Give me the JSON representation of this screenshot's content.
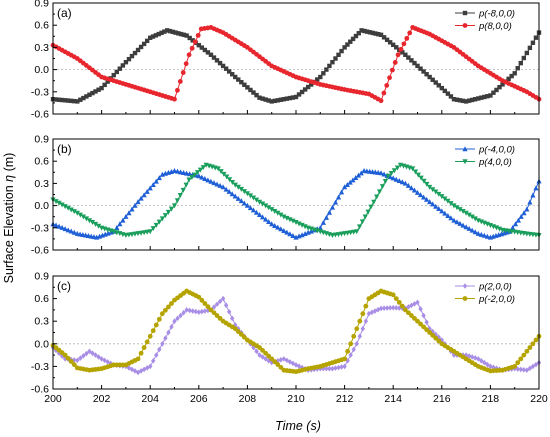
{
  "figure": {
    "ylabel_prefix": "Surface Elevation ",
    "ylabel_symbol": "η",
    "ylabel_unit": " (m)",
    "xlabel": "Time (s)"
  },
  "chart_data": [
    {
      "type": "line",
      "panel_label": "(a)",
      "xlim": [
        200,
        220
      ],
      "ylim": [
        -0.6,
        0.9
      ],
      "x_ticks": [
        200,
        202,
        204,
        206,
        208,
        210,
        212,
        214,
        216,
        218,
        220
      ],
      "y_ticks": [
        -0.6,
        -0.3,
        0.0,
        0.3,
        0.6,
        0.9
      ],
      "y_tick_labels": [
        "-0.6",
        "-0.3",
        "0.0",
        "0.3",
        "0.6",
        "0.9"
      ],
      "zero_line": true,
      "legend_position": "top-right",
      "series": [
        {
          "name": "p(-8,0,0)",
          "color": "#3d3d3d",
          "marker": "square",
          "points": [
            [
              200,
              -0.4
            ],
            [
              201,
              -0.43
            ],
            [
              202,
              -0.25
            ],
            [
              203,
              0.1
            ],
            [
              204,
              0.43
            ],
            [
              204.7,
              0.53
            ],
            [
              205.5,
              0.46
            ],
            [
              206.5,
              0.2
            ],
            [
              207.5,
              -0.1
            ],
            [
              208.5,
              -0.38
            ],
            [
              209,
              -0.43
            ],
            [
              210,
              -0.37
            ],
            [
              211,
              -0.1
            ],
            [
              212,
              0.3
            ],
            [
              212.7,
              0.53
            ],
            [
              213.5,
              0.47
            ],
            [
              214.5,
              0.2
            ],
            [
              215.5,
              -0.1
            ],
            [
              216.5,
              -0.4
            ],
            [
              217,
              -0.43
            ],
            [
              218,
              -0.35
            ],
            [
              219,
              -0.05
            ],
            [
              220,
              0.5
            ]
          ]
        },
        {
          "name": "p(8,0,0)",
          "color": "#e8262e",
          "marker": "circle",
          "points": [
            [
              200,
              0.33
            ],
            [
              201,
              0.15
            ],
            [
              202,
              -0.1
            ],
            [
              203,
              -0.2
            ],
            [
              204,
              -0.3
            ],
            [
              205,
              -0.4
            ],
            [
              205.6,
              0.2
            ],
            [
              206.1,
              0.55
            ],
            [
              206.5,
              0.57
            ],
            [
              207,
              0.5
            ],
            [
              208,
              0.3
            ],
            [
              209,
              0.05
            ],
            [
              210,
              -0.1
            ],
            [
              211,
              -0.2
            ],
            [
              212,
              -0.27
            ],
            [
              213,
              -0.33
            ],
            [
              213.5,
              -0.42
            ],
            [
              214.2,
              0.2
            ],
            [
              214.8,
              0.57
            ],
            [
              215.5,
              0.48
            ],
            [
              216.5,
              0.3
            ],
            [
              217.5,
              0.05
            ],
            [
              218.5,
              -0.15
            ],
            [
              219.5,
              -0.3
            ],
            [
              220,
              -0.4
            ]
          ]
        }
      ]
    },
    {
      "type": "line",
      "panel_label": "(b)",
      "xlim": [
        200,
        220
      ],
      "ylim": [
        -0.6,
        0.9
      ],
      "x_ticks": [
        200,
        202,
        204,
        206,
        208,
        210,
        212,
        214,
        216,
        218,
        220
      ],
      "y_ticks": [
        -0.6,
        -0.3,
        0.0,
        0.3,
        0.6,
        0.9
      ],
      "y_tick_labels": [
        "-0.6",
        "-0.3",
        "0.0",
        "0.3",
        "0.6",
        "0.9"
      ],
      "zero_line": true,
      "legend_position": "top-right",
      "series": [
        {
          "name": "p(-4,0,0)",
          "color": "#1f5fd6",
          "marker": "triangle-up",
          "points": [
            [
              200,
              -0.25
            ],
            [
              201,
              -0.38
            ],
            [
              201.8,
              -0.43
            ],
            [
              202.5,
              -0.35
            ],
            [
              203.5,
              0.05
            ],
            [
              204.5,
              0.42
            ],
            [
              205,
              0.47
            ],
            [
              206,
              0.4
            ],
            [
              207,
              0.25
            ],
            [
              208,
              0.0
            ],
            [
              209,
              -0.25
            ],
            [
              210,
              -0.43
            ],
            [
              211,
              -0.3
            ],
            [
              212,
              0.25
            ],
            [
              212.8,
              0.47
            ],
            [
              213.5,
              0.44
            ],
            [
              214.5,
              0.3
            ],
            [
              215.5,
              0.05
            ],
            [
              216.5,
              -0.2
            ],
            [
              217.5,
              -0.38
            ],
            [
              218,
              -0.43
            ],
            [
              218.8,
              -0.35
            ],
            [
              219.5,
              -0.05
            ],
            [
              220,
              0.33
            ]
          ]
        },
        {
          "name": "p(4,0,0)",
          "color": "#1a9e5c",
          "marker": "triangle-down",
          "points": [
            [
              200,
              0.08
            ],
            [
              201,
              -0.1
            ],
            [
              202,
              -0.3
            ],
            [
              203,
              -0.4
            ],
            [
              204,
              -0.35
            ],
            [
              205,
              0.0
            ],
            [
              205.6,
              0.35
            ],
            [
              206.3,
              0.55
            ],
            [
              206.8,
              0.5
            ],
            [
              207.5,
              0.28
            ],
            [
              208.5,
              0.05
            ],
            [
              209.5,
              -0.15
            ],
            [
              210.5,
              -0.3
            ],
            [
              211.5,
              -0.4
            ],
            [
              212.5,
              -0.35
            ],
            [
              213.2,
              0.05
            ],
            [
              213.8,
              0.4
            ],
            [
              214.3,
              0.55
            ],
            [
              214.8,
              0.5
            ],
            [
              215.5,
              0.25
            ],
            [
              216.5,
              0.0
            ],
            [
              217.5,
              -0.2
            ],
            [
              218.5,
              -0.33
            ],
            [
              219.5,
              -0.38
            ],
            [
              220,
              -0.4
            ]
          ]
        }
      ]
    },
    {
      "type": "line",
      "panel_label": "(c)",
      "xlim": [
        200,
        220
      ],
      "ylim": [
        -0.6,
        0.9
      ],
      "x_ticks": [
        200,
        202,
        204,
        206,
        208,
        210,
        212,
        214,
        216,
        218,
        220
      ],
      "y_ticks": [
        -0.6,
        -0.3,
        0.0,
        0.3,
        0.6,
        0.9
      ],
      "y_tick_labels": [
        "-0.6",
        "-0.3",
        "0.0",
        "0.3",
        "0.6",
        "0.9"
      ],
      "zero_line": true,
      "legend_position": "top-right",
      "series": [
        {
          "name": "p(2,0,0)",
          "color": "#a98ee6",
          "marker": "diamond",
          "points": [
            [
              200,
              -0.05
            ],
            [
              200.5,
              -0.2
            ],
            [
              201,
              -0.22
            ],
            [
              201.5,
              -0.1
            ],
            [
              202,
              -0.2
            ],
            [
              202.5,
              -0.28
            ],
            [
              203,
              -0.3
            ],
            [
              203.5,
              -0.38
            ],
            [
              204,
              -0.3
            ],
            [
              204.5,
              0.0
            ],
            [
              205,
              0.3
            ],
            [
              205.5,
              0.45
            ],
            [
              206,
              0.42
            ],
            [
              206.5,
              0.45
            ],
            [
              207,
              0.6
            ],
            [
              207.5,
              0.25
            ],
            [
              208,
              0.05
            ],
            [
              208.5,
              -0.15
            ],
            [
              209,
              -0.25
            ],
            [
              209.5,
              -0.2
            ],
            [
              210,
              -0.28
            ],
            [
              210.5,
              -0.35
            ],
            [
              211,
              -0.33
            ],
            [
              211.5,
              -0.33
            ],
            [
              212,
              -0.3
            ],
            [
              212.5,
              0.0
            ],
            [
              213,
              0.4
            ],
            [
              213.5,
              0.47
            ],
            [
              214,
              0.48
            ],
            [
              214.5,
              0.47
            ],
            [
              215,
              0.55
            ],
            [
              215.5,
              0.2
            ],
            [
              216,
              0.05
            ],
            [
              216.5,
              -0.15
            ],
            [
              217,
              -0.15
            ],
            [
              217.5,
              -0.2
            ],
            [
              218,
              -0.3
            ],
            [
              218.5,
              -0.35
            ],
            [
              219,
              -0.33
            ],
            [
              219.5,
              -0.35
            ],
            [
              220,
              -0.25
            ]
          ]
        },
        {
          "name": "p(-2,0,0)",
          "color": "#b5a300",
          "marker": "circle",
          "points": [
            [
              200,
              -0.02
            ],
            [
              200.5,
              -0.15
            ],
            [
              201,
              -0.32
            ],
            [
              201.5,
              -0.35
            ],
            [
              202,
              -0.33
            ],
            [
              202.5,
              -0.28
            ],
            [
              203,
              -0.28
            ],
            [
              203.5,
              -0.2
            ],
            [
              204,
              0.1
            ],
            [
              204.5,
              0.4
            ],
            [
              205,
              0.58
            ],
            [
              205.5,
              0.7
            ],
            [
              206,
              0.62
            ],
            [
              206.5,
              0.45
            ],
            [
              207,
              0.3
            ],
            [
              207.5,
              0.2
            ],
            [
              208,
              0.05
            ],
            [
              208.5,
              -0.05
            ],
            [
              209,
              -0.2
            ],
            [
              209.5,
              -0.35
            ],
            [
              210,
              -0.37
            ],
            [
              210.5,
              -0.33
            ],
            [
              211,
              -0.3
            ],
            [
              211.5,
              -0.25
            ],
            [
              212,
              -0.2
            ],
            [
              212.5,
              0.2
            ],
            [
              213,
              0.6
            ],
            [
              213.5,
              0.7
            ],
            [
              214,
              0.65
            ],
            [
              214.5,
              0.45
            ],
            [
              215,
              0.3
            ],
            [
              215.5,
              0.15
            ],
            [
              216,
              0.0
            ],
            [
              216.5,
              -0.1
            ],
            [
              217,
              -0.2
            ],
            [
              217.5,
              -0.3
            ],
            [
              218,
              -0.36
            ],
            [
              218.5,
              -0.35
            ],
            [
              219,
              -0.3
            ],
            [
              219.5,
              -0.1
            ],
            [
              220,
              0.1
            ]
          ]
        }
      ]
    }
  ]
}
